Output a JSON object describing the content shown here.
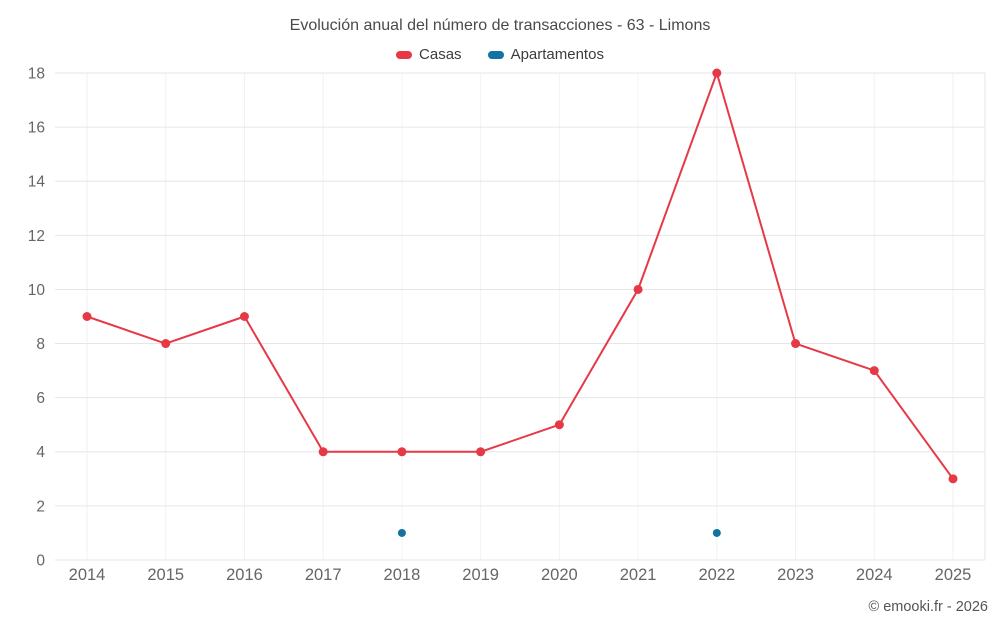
{
  "title": "Evolución anual del número de transacciones - 63 - Limons",
  "footer": "© emooki.fr - 2026",
  "legend": [
    {
      "id": "casas",
      "label": "Casas",
      "color": "#e63946"
    },
    {
      "id": "apartamentos",
      "label": "Apartamentos",
      "color": "#1272a0"
    }
  ],
  "chart_data": {
    "type": "line",
    "title": "Evolución anual del número de transacciones - 63 - Limons",
    "x": [
      2014,
      2015,
      2016,
      2017,
      2018,
      2019,
      2020,
      2021,
      2022,
      2023,
      2024,
      2025
    ],
    "series": [
      {
        "name": "Casas",
        "color": "#e63946",
        "marker_radius": 4.5,
        "values": [
          9,
          8,
          9,
          4,
          4,
          4,
          5,
          10,
          18,
          8,
          7,
          3
        ]
      },
      {
        "name": "Apartamentos",
        "color": "#1272a0",
        "marker_radius": 4,
        "values": [
          null,
          null,
          null,
          null,
          1,
          null,
          null,
          null,
          1,
          null,
          null,
          null
        ]
      }
    ],
    "xlabel": "",
    "ylabel": "",
    "ylim": [
      0,
      18
    ],
    "ytick_step": 2,
    "grid": true,
    "legend_position": "top",
    "colors": {
      "gridline": "#e6e6e6",
      "minor_vertical_gridline": "#f2f2f2",
      "axis_label": "#666666"
    }
  }
}
